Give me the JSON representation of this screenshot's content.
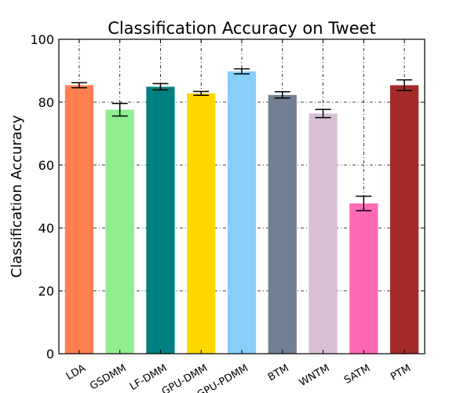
{
  "chart_data": {
    "type": "bar",
    "title": "Classification Accuracy on Tweet",
    "xlabel": "",
    "ylabel": "Classification Accuracy",
    "ylim": [
      0,
      100
    ],
    "yticks": [
      0,
      20,
      40,
      60,
      80,
      100
    ],
    "grid": true,
    "categories": [
      "LDA",
      "GSDMM",
      "LF-DMM",
      "GPU-DMM",
      "GPU-PDMM",
      "BTM",
      "WNTM",
      "SATM",
      "PTM"
    ],
    "values": [
      85.4,
      77.6,
      84.9,
      82.8,
      89.8,
      82.3,
      76.4,
      47.8,
      85.4
    ],
    "errors": [
      0.8,
      2.0,
      1.0,
      0.6,
      0.8,
      1.0,
      1.3,
      2.3,
      1.7
    ],
    "colors": [
      "#FF7F50",
      "#90EE90",
      "#008080",
      "#FFD700",
      "#87CEFA",
      "#708090",
      "#D8BFD8",
      "#FF69B4",
      "#A52A2A"
    ]
  }
}
